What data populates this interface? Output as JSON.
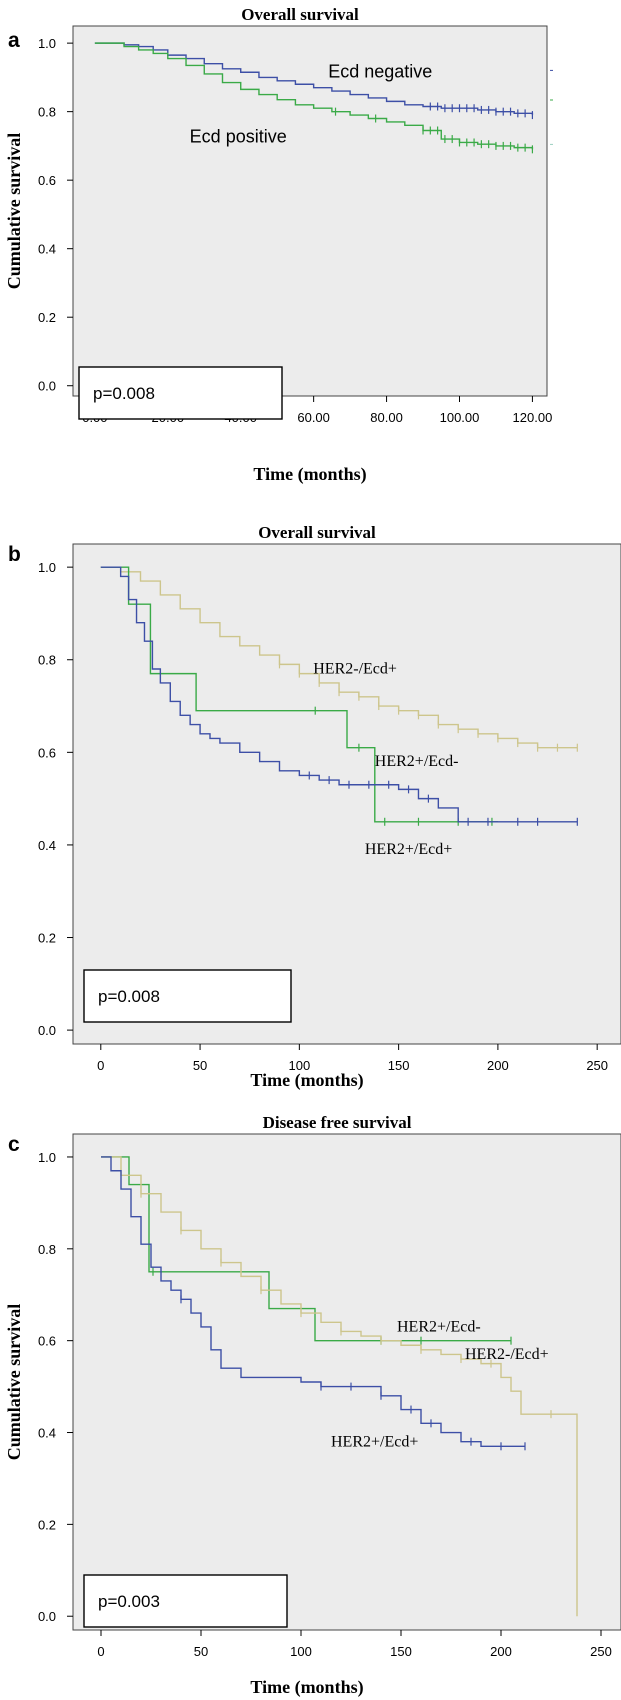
{
  "chart_data": [
    {
      "panel": "a",
      "type": "line",
      "title": "Overall survival",
      "xlabel": "Time (months)",
      "ylabel": "Cumulative survival",
      "xlim": [
        -6,
        124
      ],
      "ylim": [
        -0.03,
        1.05
      ],
      "xticks": [
        0,
        20,
        40,
        60,
        80,
        100,
        120
      ],
      "xtick_labels": [
        "0.00",
        "20.00",
        "40.00",
        "60.00",
        "80.00",
        "100.00",
        "120.00"
      ],
      "yticks": [
        0.0,
        0.2,
        0.4,
        0.6,
        0.8,
        1.0
      ],
      "ytick_labels": [
        "0.0",
        "0.2",
        "0.4",
        "0.6",
        "0.8",
        "1.0"
      ],
      "p_value": "p=0.008",
      "series": [
        {
          "name": "Ecd negative",
          "color": "#3d4fa6",
          "x": [
            0,
            4,
            8,
            12,
            16,
            20,
            25,
            30,
            35,
            40,
            45,
            50,
            55,
            60,
            65,
            70,
            75,
            80,
            85,
            90,
            95,
            100,
            105,
            110,
            115,
            120
          ],
          "y": [
            1.0,
            1.0,
            0.995,
            0.99,
            0.98,
            0.965,
            0.955,
            0.94,
            0.925,
            0.915,
            0.9,
            0.89,
            0.88,
            0.87,
            0.86,
            0.85,
            0.84,
            0.83,
            0.82,
            0.815,
            0.81,
            0.81,
            0.805,
            0.8,
            0.795,
            0.79
          ],
          "censor_x": [
            92,
            94,
            96,
            98,
            100,
            102,
            104,
            106,
            108,
            110,
            112,
            114,
            116,
            118,
            120
          ],
          "label_pos": [
            64,
            0.9
          ]
        },
        {
          "name": "Ecd positive",
          "color": "#3aaa47",
          "x": [
            0,
            4,
            8,
            12,
            16,
            20,
            25,
            30,
            35,
            40,
            45,
            50,
            55,
            60,
            65,
            70,
            75,
            80,
            85,
            90,
            95,
            100,
            105,
            110,
            115,
            120
          ],
          "y": [
            1.0,
            1.0,
            0.99,
            0.98,
            0.97,
            0.955,
            0.935,
            0.91,
            0.885,
            0.865,
            0.85,
            0.835,
            0.82,
            0.81,
            0.8,
            0.79,
            0.78,
            0.77,
            0.76,
            0.745,
            0.72,
            0.71,
            0.705,
            0.7,
            0.695,
            0.69
          ],
          "censor_x": [
            66,
            77,
            90,
            92,
            94,
            96,
            98,
            100,
            102,
            104,
            106,
            108,
            110,
            112,
            114,
            116,
            118,
            120
          ],
          "label_pos": [
            26,
            0.71
          ]
        }
      ]
    },
    {
      "panel": "b",
      "type": "line",
      "title": "Overall survival",
      "xlabel": "Time (months)",
      "ylabel": "",
      "xlim": [
        -14,
        262
      ],
      "ylim": [
        -0.03,
        1.05
      ],
      "xticks": [
        0,
        50,
        100,
        150,
        200,
        250
      ],
      "xtick_labels": [
        "0",
        "50",
        "100",
        "150",
        "200",
        "250"
      ],
      "yticks": [
        0.0,
        0.2,
        0.4,
        0.6,
        0.8,
        1.0
      ],
      "ytick_labels": [
        "0.0",
        "0.2",
        "0.4",
        "0.6",
        "0.8",
        "1.0"
      ],
      "p_value": "p=0.008",
      "series": [
        {
          "name": "HER2-/Ecd+",
          "color": "#cdc58c",
          "x": [
            0,
            10,
            20,
            30,
            40,
            50,
            60,
            70,
            80,
            90,
            100,
            110,
            120,
            130,
            140,
            150,
            160,
            170,
            180,
            190,
            200,
            210,
            220,
            230,
            240
          ],
          "y": [
            1.0,
            0.99,
            0.97,
            0.94,
            0.91,
            0.88,
            0.85,
            0.83,
            0.81,
            0.79,
            0.77,
            0.75,
            0.73,
            0.72,
            0.7,
            0.69,
            0.68,
            0.66,
            0.65,
            0.64,
            0.63,
            0.62,
            0.61,
            0.61,
            0.61
          ],
          "censor_x": [
            90,
            100,
            110,
            120,
            130,
            140,
            150,
            160,
            170,
            180,
            190,
            200,
            210,
            220,
            230,
            240
          ],
          "label_pos": [
            107,
            0.77
          ]
        },
        {
          "name": "HER2+/Ecd-",
          "color": "#3aaa47",
          "x": [
            0,
            14,
            14,
            25,
            25,
            48,
            48,
            124,
            124,
            138,
            138,
            200
          ],
          "y": [
            1.0,
            1.0,
            0.92,
            0.92,
            0.77,
            0.77,
            0.69,
            0.69,
            0.61,
            0.61,
            0.45,
            0.45
          ],
          "censor_x": [
            108,
            130,
            143,
            160,
            180,
            197
          ],
          "label_pos": [
            138,
            0.57
          ]
        },
        {
          "name": "HER2+/Ecd+",
          "color": "#3d4fa6",
          "x": [
            0,
            10,
            14,
            18,
            22,
            26,
            30,
            35,
            40,
            45,
            50,
            55,
            60,
            70,
            80,
            90,
            100,
            110,
            120,
            130,
            140,
            150,
            160,
            170,
            180,
            190,
            200,
            210,
            220,
            230,
            240
          ],
          "y": [
            1.0,
            0.98,
            0.93,
            0.88,
            0.84,
            0.78,
            0.75,
            0.71,
            0.68,
            0.66,
            0.64,
            0.63,
            0.62,
            0.6,
            0.58,
            0.56,
            0.55,
            0.54,
            0.53,
            0.53,
            0.53,
            0.52,
            0.5,
            0.48,
            0.45,
            0.45,
            0.45,
            0.45,
            0.45,
            0.45,
            0.45
          ],
          "censor_x": [
            105,
            115,
            125,
            135,
            145,
            155,
            165,
            185,
            195,
            210,
            220,
            240
          ],
          "label_pos": [
            133,
            0.38
          ]
        }
      ]
    },
    {
      "panel": "c",
      "type": "line",
      "title": "Disease free survival",
      "xlabel": "Time (months)",
      "ylabel": "Cumulative survival",
      "xlim": [
        -14,
        260
      ],
      "ylim": [
        -0.03,
        1.05
      ],
      "xticks": [
        0,
        50,
        100,
        150,
        200,
        250
      ],
      "xtick_labels": [
        "0",
        "50",
        "100",
        "150",
        "200",
        "250"
      ],
      "yticks": [
        0.0,
        0.2,
        0.4,
        0.6,
        0.8,
        1.0
      ],
      "ytick_labels": [
        "0.0",
        "0.2",
        "0.4",
        "0.6",
        "0.8",
        "1.0"
      ],
      "p_value": "p=0.003",
      "series": [
        {
          "name": "HER2+/Ecd-",
          "color": "#3aaa47",
          "x": [
            0,
            14,
            14,
            24,
            24,
            84,
            84,
            107,
            107,
            205
          ],
          "y": [
            1.0,
            1.0,
            0.94,
            0.94,
            0.75,
            0.75,
            0.67,
            0.67,
            0.6,
            0.6
          ],
          "censor_x": [
            26,
            140,
            160,
            205
          ],
          "label_pos": [
            148,
            0.62
          ]
        },
        {
          "name": "HER2-/Ecd+",
          "color": "#cdc58c",
          "x": [
            0,
            10,
            20,
            30,
            40,
            50,
            60,
            70,
            80,
            90,
            100,
            110,
            120,
            130,
            140,
            150,
            160,
            170,
            180,
            190,
            200,
            205,
            210,
            215,
            225,
            238,
            238
          ],
          "y": [
            1.0,
            0.96,
            0.92,
            0.88,
            0.84,
            0.8,
            0.77,
            0.74,
            0.71,
            0.68,
            0.66,
            0.64,
            0.62,
            0.61,
            0.6,
            0.59,
            0.58,
            0.57,
            0.56,
            0.55,
            0.52,
            0.49,
            0.44,
            0.44,
            0.44,
            0.44,
            0.0
          ],
          "censor_x": [
            20,
            40,
            60,
            80,
            100,
            120,
            140,
            160,
            180,
            195,
            225
          ],
          "label_pos": [
            182,
            0.56
          ]
        },
        {
          "name": "HER2+/Ecd+",
          "color": "#3d4fa6",
          "x": [
            0,
            5,
            10,
            15,
            20,
            25,
            30,
            35,
            40,
            45,
            50,
            55,
            60,
            70,
            80,
            90,
            100,
            110,
            120,
            130,
            140,
            150,
            160,
            170,
            180,
            190,
            200,
            212
          ],
          "y": [
            1.0,
            0.97,
            0.93,
            0.87,
            0.81,
            0.76,
            0.73,
            0.71,
            0.69,
            0.66,
            0.63,
            0.58,
            0.54,
            0.52,
            0.52,
            0.52,
            0.51,
            0.5,
            0.5,
            0.5,
            0.48,
            0.45,
            0.42,
            0.4,
            0.38,
            0.37,
            0.37,
            0.37
          ],
          "censor_x": [
            40,
            110,
            125,
            140,
            155,
            165,
            185,
            200,
            212
          ],
          "label_pos": [
            115,
            0.37
          ]
        }
      ]
    }
  ]
}
